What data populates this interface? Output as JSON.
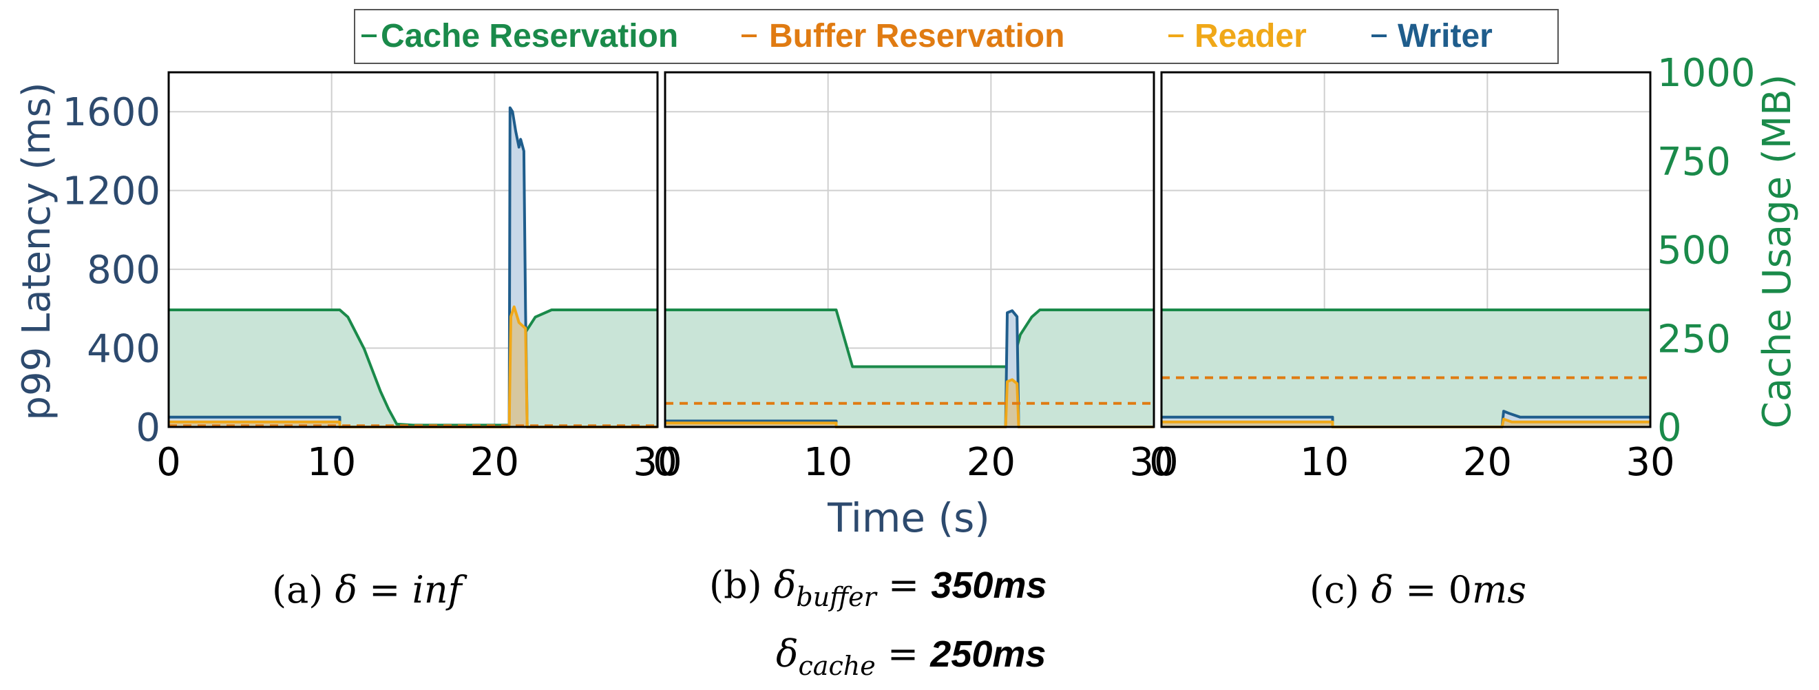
{
  "colors": {
    "cache": "#1a8a4a",
    "cache_fill": "#c9e4d7",
    "buffer": "#e07b12",
    "reader": "#f0a818",
    "writer": "#1f5d8c",
    "writer_fill": "#c8d8e8",
    "axis_left": "#2d4a6e",
    "axis_right": "#1a8a4a"
  },
  "legend": [
    {
      "label": "Cache Reservation",
      "key": "cache"
    },
    {
      "label": "Buffer Reservation",
      "key": "buffer"
    },
    {
      "label": "Reader",
      "key": "reader"
    },
    {
      "label": "Writer",
      "key": "writer"
    }
  ],
  "axes": {
    "y_left_label": "p99 Latency (ms)",
    "y_right_label": "Cache Usage (MB)",
    "x_label": "Time (s)"
  },
  "captions": {
    "a_prefix": "(a) ",
    "a_delta": "δ",
    "a_eq": " = ",
    "a_value": "inf",
    "b_prefix": "(b) ",
    "b_delta": "δ",
    "b_sub_buffer": "buffer",
    "b_eq": " = ",
    "b_value_buffer": "350ms",
    "b_sub_cache": "cache",
    "b_value_cache": "250ms",
    "c_prefix": "(c) ",
    "c_delta": "δ",
    "c_eq": " = ",
    "c_value_num": "0",
    "c_value_unit": "ms"
  },
  "chart_data": [
    {
      "type": "line",
      "panel": "a",
      "xlim": [
        0,
        30
      ],
      "ylim_left": [
        0,
        1800
      ],
      "ylim_right": [
        0,
        1000
      ],
      "x_ticks": [
        0,
        10,
        20,
        30
      ],
      "y_left_ticks": [
        0,
        400,
        800,
        1200,
        1600
      ],
      "y_right_ticks": [
        0,
        250,
        500,
        750,
        1000
      ],
      "grid": true,
      "series": [
        {
          "name": "Cache Reservation",
          "axis": "right",
          "x": [
            0,
            10.5,
            11,
            12,
            13,
            13.5,
            14,
            15,
            20,
            20.9,
            21.3,
            21.8,
            22.5,
            23.5,
            24.5,
            30
          ],
          "y": [
            330,
            330,
            310,
            220,
            100,
            50,
            8,
            5,
            5,
            5,
            150,
            260,
            310,
            330,
            330,
            330
          ]
        },
        {
          "name": "Buffer Reservation",
          "axis": "left",
          "dashed": true,
          "x": [
            0,
            30
          ],
          "y": [
            6,
            6
          ]
        },
        {
          "name": "Reader",
          "axis": "left",
          "x": [
            0,
            10.5,
            10.5,
            20.9,
            21.0,
            21.2,
            21.5,
            21.9,
            22.0,
            30
          ],
          "y": [
            25,
            25,
            0,
            0,
            560,
            610,
            530,
            500,
            0,
            0
          ]
        },
        {
          "name": "Writer",
          "axis": "left",
          "x": [
            0,
            10.5,
            10.5,
            20.9,
            20.95,
            21.1,
            21.3,
            21.5,
            21.6,
            21.8,
            21.9,
            22.0,
            30
          ],
          "y": [
            50,
            50,
            0,
            0,
            1620,
            1600,
            1500,
            1420,
            1460,
            1400,
            600,
            0,
            0
          ]
        }
      ]
    },
    {
      "type": "line",
      "panel": "b",
      "xlim": [
        0,
        30
      ],
      "ylim_left": [
        0,
        1800
      ],
      "ylim_right": [
        0,
        1000
      ],
      "x_ticks": [
        0,
        10,
        20,
        30
      ],
      "grid": true,
      "series": [
        {
          "name": "Cache Reservation",
          "axis": "right",
          "x": [
            0,
            10.5,
            11.5,
            20.9,
            21.3,
            21.8,
            22.5,
            23.0,
            30
          ],
          "y": [
            330,
            330,
            170,
            170,
            175,
            260,
            310,
            330,
            330
          ]
        },
        {
          "name": "Buffer Reservation",
          "axis": "left",
          "dashed": true,
          "x": [
            0,
            30
          ],
          "y": [
            120,
            120
          ]
        },
        {
          "name": "Reader",
          "axis": "left",
          "x": [
            0,
            10.5,
            10.5,
            20.9,
            21.0,
            21.3,
            21.6,
            21.7,
            30
          ],
          "y": [
            20,
            20,
            0,
            0,
            230,
            240,
            220,
            0,
            0
          ]
        },
        {
          "name": "Writer",
          "axis": "left",
          "x": [
            0,
            10.5,
            10.5,
            20.9,
            21.0,
            21.3,
            21.6,
            21.7,
            30
          ],
          "y": [
            30,
            30,
            0,
            0,
            580,
            590,
            560,
            0,
            0
          ]
        }
      ]
    },
    {
      "type": "line",
      "panel": "c",
      "xlim": [
        0,
        30
      ],
      "ylim_left": [
        0,
        1800
      ],
      "ylim_right": [
        0,
        1000
      ],
      "x_ticks": [
        0,
        10,
        20,
        30
      ],
      "grid": true,
      "series": [
        {
          "name": "Cache Reservation",
          "axis": "right",
          "x": [
            0,
            30
          ],
          "y": [
            330,
            330
          ]
        },
        {
          "name": "Buffer Reservation",
          "axis": "left",
          "dashed": true,
          "x": [
            0,
            30
          ],
          "y": [
            250,
            250
          ]
        },
        {
          "name": "Reader",
          "axis": "left",
          "x": [
            0,
            10.5,
            10.5,
            20.9,
            21.0,
            21.5,
            30
          ],
          "y": [
            25,
            25,
            0,
            0,
            40,
            25,
            25
          ]
        },
        {
          "name": "Writer",
          "axis": "left",
          "x": [
            0,
            10.5,
            10.5,
            20.9,
            21.0,
            21.3,
            22.0,
            30
          ],
          "y": [
            50,
            50,
            0,
            0,
            80,
            70,
            50,
            50
          ]
        }
      ]
    }
  ]
}
